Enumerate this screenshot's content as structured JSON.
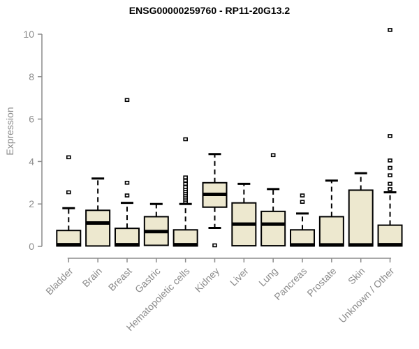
{
  "title": "ENSG00000259760 - RP11-20G13.2",
  "chart_data": {
    "type": "boxplot",
    "title": "ENSG00000259760 - RP11-20G13.2",
    "xlabel": "",
    "ylabel": "Expression",
    "ylim": [
      0,
      10
    ],
    "yticks": [
      0,
      2,
      4,
      6,
      8,
      10
    ],
    "grid": false,
    "legend": "none",
    "colors": {
      "box_fill": "#EDE8CF",
      "box_stroke": "#000000",
      "median": "#000000",
      "axis": "#8B8B8B",
      "title_text": "#000000",
      "background": "#FFFFFF"
    },
    "categories": [
      "Bladder",
      "Brain",
      "Breast",
      "Gastric",
      "Hematopoietic cells",
      "Kidney",
      "Liver",
      "Lung",
      "Pancreas",
      "Prostate",
      "Skin",
      "Unknown / Other"
    ],
    "series": [
      {
        "name": "Bladder",
        "whisker_low": 0.02,
        "q1": 0.02,
        "median": 0.08,
        "q3": 0.75,
        "whisker_high": 1.8,
        "outliers": [
          2.55,
          4.2
        ]
      },
      {
        "name": "Brain",
        "whisker_low": 0.02,
        "q1": 0.02,
        "median": 1.1,
        "q3": 1.7,
        "whisker_high": 3.2,
        "outliers": []
      },
      {
        "name": "Breast",
        "whisker_low": 0.02,
        "q1": 0.02,
        "median": 0.08,
        "q3": 0.85,
        "whisker_high": 2.05,
        "outliers": [
          2.4,
          3.0,
          6.9
        ]
      },
      {
        "name": "Gastric",
        "whisker_low": 0.05,
        "q1": 0.05,
        "median": 0.7,
        "q3": 1.4,
        "whisker_high": 2.0,
        "outliers": []
      },
      {
        "name": "Hematopoietic cells",
        "whisker_low": 0.02,
        "q1": 0.02,
        "median": 0.08,
        "q3": 0.78,
        "whisker_high": 2.0,
        "outliers": [
          2.1,
          2.2,
          2.3,
          2.4,
          2.5,
          2.6,
          2.7,
          2.8,
          2.95,
          3.1,
          3.25,
          5.05
        ]
      },
      {
        "name": "Kidney",
        "whisker_low": 0.87,
        "q1": 1.85,
        "median": 2.45,
        "q3": 3.0,
        "whisker_high": 4.35,
        "outliers": [
          0.05
        ]
      },
      {
        "name": "Liver",
        "whisker_low": 0.03,
        "q1": 0.03,
        "median": 1.05,
        "q3": 2.05,
        "whisker_high": 2.95,
        "outliers": []
      },
      {
        "name": "Lung",
        "whisker_low": 0.03,
        "q1": 0.03,
        "median": 1.05,
        "q3": 1.65,
        "whisker_high": 2.7,
        "outliers": [
          4.3
        ]
      },
      {
        "name": "Pancreas",
        "whisker_low": 0.02,
        "q1": 0.02,
        "median": 0.07,
        "q3": 0.78,
        "whisker_high": 1.55,
        "outliers": [
          2.1,
          2.4
        ]
      },
      {
        "name": "Prostate",
        "whisker_low": 0.02,
        "q1": 0.02,
        "median": 0.07,
        "q3": 1.4,
        "whisker_high": 3.1,
        "outliers": []
      },
      {
        "name": "Skin",
        "whisker_low": 0.02,
        "q1": 0.02,
        "median": 0.07,
        "q3": 2.65,
        "whisker_high": 3.45,
        "outliers": []
      },
      {
        "name": "Unknown / Other",
        "whisker_low": 0.02,
        "q1": 0.02,
        "median": 0.08,
        "q3": 1.0,
        "whisker_high": 2.55,
        "outliers": [
          2.7,
          2.95,
          3.35,
          3.7,
          4.05,
          5.2,
          10.2
        ]
      }
    ]
  }
}
